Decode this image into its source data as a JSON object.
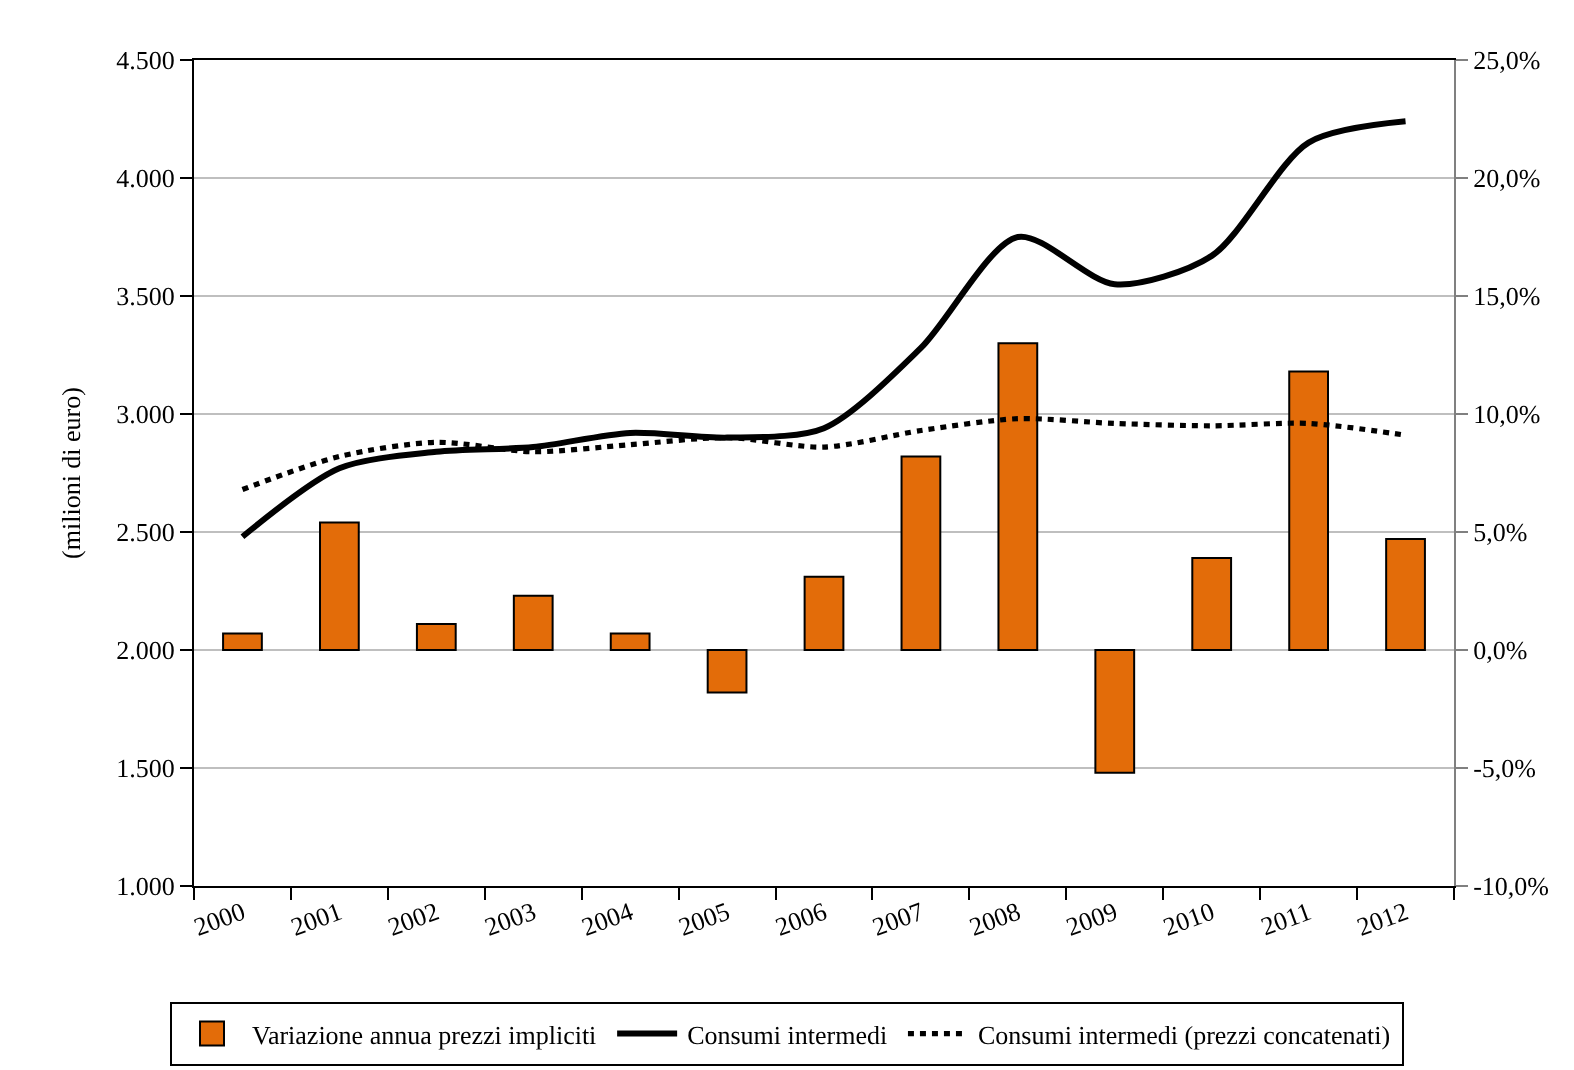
{
  "chart_data": {
    "type": "bar",
    "categories": [
      "2000",
      "2001",
      "2002",
      "2003",
      "2004",
      "2005",
      "2006",
      "2007",
      "2008",
      "2009",
      "2010",
      "2011",
      "2012"
    ],
    "ylabel": "(milioni di euro)",
    "series": [
      {
        "name": "Variazione annua prezzi impliciti",
        "axis": "y2",
        "color": "#e36c09",
        "values": [
          0.7,
          5.4,
          1.1,
          2.3,
          0.7,
          -1.8,
          3.1,
          8.2,
          13.0,
          -5.2,
          3.9,
          11.8,
          4.7
        ]
      },
      {
        "name": "Consumi intermedi",
        "type": "line",
        "color": "#000000",
        "line_style": "solid",
        "values": [
          2480,
          2770,
          2840,
          2860,
          2920,
          2900,
          2940,
          3280,
          3750,
          3550,
          3670,
          4150,
          4240
        ]
      },
      {
        "name": "Consumi intermedi (prezzi concatenati)",
        "type": "line",
        "color": "#000000",
        "line_style": "dotted",
        "values": [
          2680,
          2820,
          2880,
          2840,
          2870,
          2900,
          2860,
          2930,
          2980,
          2960,
          2950,
          2960,
          2910
        ]
      }
    ],
    "ylim": [
      1000,
      4500
    ],
    "yticks": [
      {
        "value": 1000,
        "label": "1.000"
      },
      {
        "value": 1500,
        "label": "1.500"
      },
      {
        "value": 2000,
        "label": "2.000"
      },
      {
        "value": 2500,
        "label": "2.500"
      },
      {
        "value": 3000,
        "label": "3.000"
      },
      {
        "value": 3500,
        "label": "3.500"
      },
      {
        "value": 4000,
        "label": "4.000"
      },
      {
        "value": 4500,
        "label": "4.500"
      }
    ],
    "y2lim": [
      -10,
      25
    ],
    "y2ticks": [
      {
        "value": -10,
        "label": "-10,0%"
      },
      {
        "value": -5,
        "label": "-5,0%"
      },
      {
        "value": 0,
        "label": "0,0%"
      },
      {
        "value": 5,
        "label": "5,0%"
      },
      {
        "value": 10,
        "label": "10,0%"
      },
      {
        "value": 15,
        "label": "15,0%"
      },
      {
        "value": 20,
        "label": "20,0%"
      },
      {
        "value": 25,
        "label": "25,0%"
      }
    ],
    "grid": "y",
    "legend": "bottom"
  }
}
